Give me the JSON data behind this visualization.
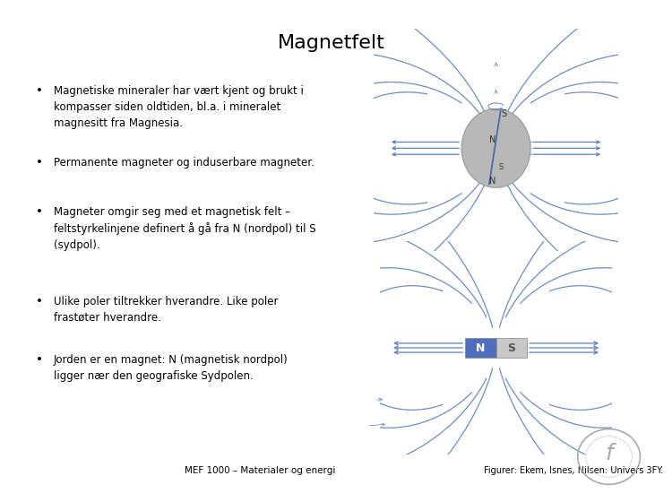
{
  "title": "Magnetfelt",
  "title_fontsize": 16,
  "bg_color": "#ffffff",
  "text_color": "#000000",
  "bullets": [
    "Magnetiske mineraler har vært kjent og brukt i\nkompasser siden oldtiden, bl.a. i mineralet\nmagnesitt fra Magnesia.",
    "Permanente magneter og induserbare magneter.",
    "Magneter omgir seg med et magnetisk felt –\nfeltstyrkelinjene definert å gå fra N (nordpol) til S\n(sydpol).",
    "Ulike poler tiltrekker hverandre. Like poler\nfrastøter hverandre.",
    "Jorden er en magnet: N (magnetisk nordpol)\nligger nær den geografiske Sydpolen."
  ],
  "footer_left": "MEF 1000 – Materialer og energi",
  "footer_right": "Figurer: Ekem, Isnes, Nilsen: Univers 3FY.",
  "footer_fontsize": 7.5,
  "bullet_fontsize": 8.5,
  "magnet_color_N": "#4f6fbe",
  "magnet_color_S": "#c8c8c8",
  "field_line_color": "#6080c0",
  "earth_color": "#b8b8b8",
  "magnet_text_N": "N",
  "magnet_text_S": "S"
}
